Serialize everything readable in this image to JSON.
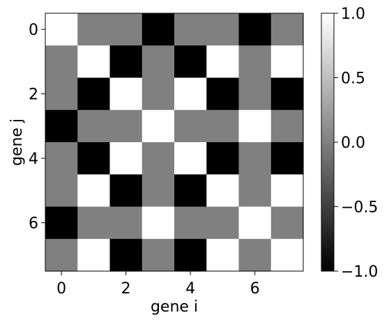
{
  "chart_data": {
    "type": "heatmap",
    "title": "",
    "xlabel": "gene i",
    "ylabel": "gene j",
    "x": [
      0,
      1,
      2,
      3,
      4,
      5,
      6,
      7
    ],
    "y": [
      0,
      1,
      2,
      3,
      4,
      5,
      6,
      7
    ],
    "x_tick_labels": [
      "0",
      "2",
      "4",
      "6"
    ],
    "y_tick_labels": [
      "0",
      "2",
      "4",
      "6"
    ],
    "y_axis_inverted": true,
    "matrix": [
      [
        1,
        0,
        0,
        -1,
        0,
        0,
        -1,
        0
      ],
      [
        0,
        1,
        -1,
        0,
        -1,
        1,
        0,
        1
      ],
      [
        0,
        -1,
        1,
        0,
        1,
        -1,
        0,
        -1
      ],
      [
        -1,
        0,
        0,
        1,
        0,
        0,
        1,
        0
      ],
      [
        0,
        -1,
        1,
        0,
        1,
        -1,
        0,
        -1
      ],
      [
        0,
        1,
        -1,
        0,
        -1,
        1,
        0,
        1
      ],
      [
        -1,
        0,
        0,
        1,
        0,
        0,
        1,
        0
      ],
      [
        0,
        1,
        -1,
        0,
        -1,
        1,
        0,
        1
      ]
    ],
    "colormap": "gray",
    "vmin": -1.0,
    "vmax": 1.0,
    "colorbar": {
      "ticks": [
        -1.0,
        -0.5,
        0.0,
        0.5,
        1.0
      ],
      "tick_labels": [
        "−1.0",
        "−0.5",
        "0.0",
        "0.5",
        "1.0"
      ]
    },
    "grid": false,
    "legend": "none"
  }
}
